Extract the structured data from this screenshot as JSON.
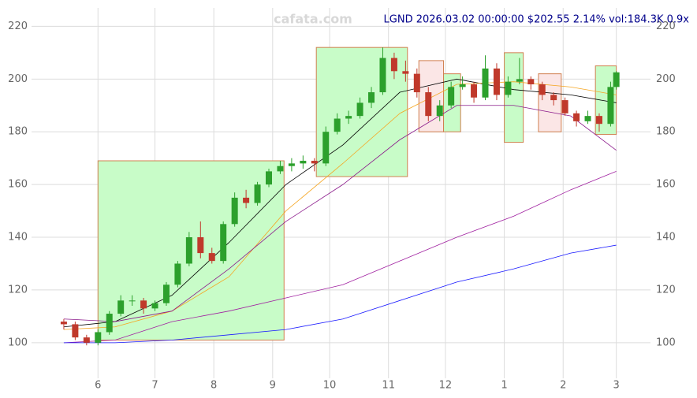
{
  "chart_data": {
    "type": "candlestick",
    "title": "LGND 2026.03.02 00:00:00 $202.55 2.14% vol:184.3K 0.9x",
    "watermark": "cafata.com",
    "xlim": [
      -4,
      322
    ],
    "ylim": [
      86.5,
      227
    ],
    "xticks": [
      {
        "value": 31,
        "label": "6"
      },
      {
        "value": 61,
        "label": "7"
      },
      {
        "value": 92,
        "label": "8"
      },
      {
        "value": 123,
        "label": "9"
      },
      {
        "value": 153,
        "label": "10"
      },
      {
        "value": 184,
        "label": "11"
      },
      {
        "value": 214,
        "label": "12"
      },
      {
        "value": 245,
        "label": "1"
      },
      {
        "value": 276,
        "label": "2"
      },
      {
        "value": 304,
        "label": "3"
      }
    ],
    "yticks": [
      100,
      120,
      140,
      160,
      180,
      200,
      220
    ],
    "grid": true,
    "up_color": "#2ca02c",
    "down_color": "#c0392b",
    "ohlc": [
      [
        13,
        108,
        109,
        105,
        107
      ],
      [
        19,
        107,
        108,
        101,
        102
      ],
      [
        25,
        102,
        103,
        99,
        100
      ],
      [
        31,
        100,
        105,
        99,
        104
      ],
      [
        37,
        104,
        112,
        103,
        111
      ],
      [
        43,
        111,
        118,
        110,
        116
      ],
      [
        49,
        116,
        118,
        114,
        116
      ],
      [
        55,
        116,
        117,
        111,
        113
      ],
      [
        61,
        113,
        116,
        112,
        115
      ],
      [
        67,
        115,
        123,
        114,
        122
      ],
      [
        73,
        122,
        131,
        121,
        130
      ],
      [
        79,
        130,
        142,
        129,
        140
      ],
      [
        85,
        140,
        146,
        132,
        134
      ],
      [
        91,
        134,
        136,
        130,
        131
      ],
      [
        97,
        131,
        146,
        130,
        145
      ],
      [
        103,
        145,
        157,
        144,
        155
      ],
      [
        109,
        155,
        158,
        151,
        153
      ],
      [
        115,
        153,
        161,
        152,
        160
      ],
      [
        121,
        160,
        166,
        159,
        165
      ],
      [
        127,
        165,
        169,
        164,
        167
      ],
      [
        133,
        167,
        170,
        165,
        168
      ],
      [
        139,
        168,
        171,
        166,
        169
      ],
      [
        145,
        169,
        170,
        165,
        168
      ],
      [
        151,
        168,
        182,
        167,
        180
      ],
      [
        157,
        180,
        187,
        179,
        185
      ],
      [
        163,
        185,
        188,
        183,
        186
      ],
      [
        169,
        186,
        193,
        185,
        191
      ],
      [
        175,
        191,
        197,
        189,
        195
      ],
      [
        181,
        195,
        212,
        194,
        208
      ],
      [
        187,
        208,
        210,
        200,
        203
      ],
      [
        193,
        203,
        207,
        199,
        202
      ],
      [
        199,
        202,
        204,
        193,
        195
      ],
      [
        205,
        195,
        197,
        184,
        186
      ],
      [
        211,
        186,
        192,
        184,
        190
      ],
      [
        217,
        190,
        199,
        189,
        197
      ],
      [
        223,
        197,
        201,
        196,
        198
      ],
      [
        229,
        198,
        199,
        191,
        193
      ],
      [
        235,
        193,
        209,
        192,
        204
      ],
      [
        241,
        204,
        206,
        192,
        194
      ],
      [
        247,
        194,
        201,
        193,
        199
      ],
      [
        253,
        199,
        208,
        198,
        200
      ],
      [
        259,
        200,
        201,
        196,
        198
      ],
      [
        265,
        198,
        199,
        192,
        194
      ],
      [
        271,
        194,
        195,
        190,
        192
      ],
      [
        277,
        192,
        193,
        186,
        187
      ],
      [
        283,
        187,
        188,
        182,
        184
      ],
      [
        289,
        184,
        188,
        183,
        186
      ],
      [
        295,
        186,
        187,
        180,
        183
      ],
      [
        301,
        183,
        199,
        182,
        197
      ],
      [
        304,
        197,
        203,
        196,
        202.55
      ]
    ],
    "zones": [
      {
        "color": "#c8fcc8",
        "stroke": "#d08050",
        "x": [
          31,
          129
        ],
        "y": [
          101,
          169
        ]
      },
      {
        "color": "#c8fcc8",
        "stroke": "#d08050",
        "x": [
          146,
          194
        ],
        "y": [
          163,
          212
        ]
      },
      {
        "color": "#fbe6e6",
        "stroke": "#d08050",
        "x": [
          200,
          213
        ],
        "y": [
          180,
          207
        ]
      },
      {
        "color": "#c8fcc8",
        "stroke": "#d08050",
        "x": [
          213,
          222
        ],
        "y": [
          180,
          202
        ]
      },
      {
        "color": "#c8fcc8",
        "stroke": "#d08050",
        "x": [
          245,
          255
        ],
        "y": [
          176,
          210
        ]
      },
      {
        "color": "#fbe6e6",
        "stroke": "#d08050",
        "x": [
          263,
          275
        ],
        "y": [
          180,
          202
        ]
      },
      {
        "color": "#c8fcc8",
        "stroke": "#d08050",
        "x": [
          293,
          304
        ],
        "y": [
          179,
          205
        ]
      }
    ],
    "ma_x": [
      13,
      40,
      70,
      100,
      130,
      160,
      190,
      220,
      250,
      280,
      304
    ],
    "series": [
      {
        "color": "#000000",
        "values": [
          106,
          108,
          118,
          138,
          160,
          175,
          195,
          200,
          196,
          194,
          191
        ]
      },
      {
        "color": "#f5a623",
        "values": [
          105,
          106,
          112,
          125,
          150,
          168,
          187,
          198,
          199,
          197,
          194
        ]
      },
      {
        "color": "#8b1a8b",
        "values": [
          109,
          108,
          112,
          128,
          146,
          160,
          177,
          190,
          190,
          186,
          173
        ]
      },
      {
        "color": "#a020a0",
        "values": [
          100,
          101,
          108,
          112,
          117,
          122,
          131,
          140,
          148,
          158,
          165
        ]
      },
      {
        "color": "#1a1aff",
        "values": [
          100,
          100,
          101,
          103,
          105,
          109,
          116,
          123,
          128,
          134,
          137
        ]
      }
    ]
  }
}
